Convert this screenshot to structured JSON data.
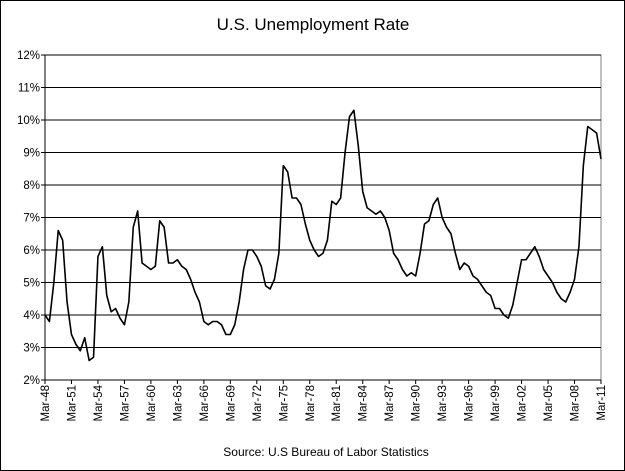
{
  "chart_data": {
    "type": "line",
    "title": "U.S. Unemployment Rate",
    "source": "Source: U.S Bureau of Labor Statistics",
    "color": "#000000",
    "grid": true,
    "categories": [
      "Mar-48",
      null,
      null,
      null,
      null,
      null,
      "Mar-51",
      null,
      null,
      null,
      null,
      null,
      "Mar-54",
      null,
      null,
      null,
      null,
      null,
      "Mar-57",
      null,
      null,
      null,
      null,
      null,
      "Mar-60",
      null,
      null,
      null,
      null,
      null,
      "Mar-63",
      null,
      null,
      null,
      null,
      null,
      "Mar-66",
      null,
      null,
      null,
      null,
      null,
      "Mar-69",
      null,
      null,
      null,
      null,
      null,
      "Mar-72",
      null,
      null,
      null,
      null,
      null,
      "Mar-75",
      null,
      null,
      null,
      null,
      null,
      "Mar-78",
      null,
      null,
      null,
      null,
      null,
      "Mar-81",
      null,
      null,
      null,
      null,
      null,
      "Mar-84",
      null,
      null,
      null,
      null,
      null,
      "Mar-87",
      null,
      null,
      null,
      null,
      null,
      "Mar-90",
      null,
      null,
      null,
      null,
      null,
      "Mar-93",
      null,
      null,
      null,
      null,
      null,
      "Mar-96",
      null,
      null,
      null,
      null,
      null,
      "Mar-99",
      null,
      null,
      null,
      null,
      null,
      "Mar-02",
      null,
      null,
      null,
      null,
      null,
      "Mar-05",
      null,
      null,
      null,
      null,
      null,
      "Mar-08",
      null,
      null,
      null,
      null,
      null,
      "Mar-11"
    ],
    "values": [
      4.0,
      3.8,
      5.0,
      6.6,
      6.3,
      4.4,
      3.4,
      3.1,
      2.9,
      3.3,
      2.6,
      2.7,
      5.8,
      6.1,
      4.6,
      4.1,
      4.2,
      3.9,
      3.7,
      4.4,
      6.7,
      7.2,
      5.6,
      5.5,
      5.4,
      5.5,
      6.9,
      6.7,
      5.6,
      5.6,
      5.7,
      5.5,
      5.4,
      5.1,
      4.7,
      4.4,
      3.8,
      3.7,
      3.8,
      3.8,
      3.7,
      3.4,
      3.4,
      3.7,
      4.4,
      5.4,
      6.0,
      6.0,
      5.8,
      5.5,
      4.9,
      4.8,
      5.1,
      5.9,
      8.6,
      8.4,
      7.6,
      7.6,
      7.4,
      6.8,
      6.3,
      6.0,
      5.8,
      5.9,
      6.3,
      7.5,
      7.4,
      7.6,
      9.0,
      10.1,
      10.3,
      9.2,
      7.8,
      7.3,
      7.2,
      7.1,
      7.2,
      7.0,
      6.6,
      5.9,
      5.7,
      5.4,
      5.2,
      5.3,
      5.2,
      5.9,
      6.8,
      6.9,
      7.4,
      7.6,
      7.0,
      6.7,
      6.5,
      5.9,
      5.4,
      5.6,
      5.5,
      5.2,
      5.1,
      4.9,
      4.7,
      4.6,
      4.2,
      4.2,
      4.0,
      3.9,
      4.3,
      5.0,
      5.7,
      5.7,
      5.9,
      6.1,
      5.8,
      5.4,
      5.2,
      5.0,
      4.7,
      4.5,
      4.4,
      4.7,
      5.1,
      6.1,
      8.6,
      9.8,
      9.7,
      9.6,
      8.8
    ],
    "ylim": [
      2,
      12
    ],
    "yticks": [
      {
        "value": 2,
        "label": "2%"
      },
      {
        "value": 3,
        "label": "3%"
      },
      {
        "value": 4,
        "label": "4%"
      },
      {
        "value": 5,
        "label": "5%"
      },
      {
        "value": 6,
        "label": "6%"
      },
      {
        "value": 7,
        "label": "7%"
      },
      {
        "value": 8,
        "label": "8%"
      },
      {
        "value": 9,
        "label": "9%"
      },
      {
        "value": 10,
        "label": "10%"
      },
      {
        "value": 11,
        "label": "11%"
      },
      {
        "value": 12,
        "label": "12%"
      }
    ]
  }
}
